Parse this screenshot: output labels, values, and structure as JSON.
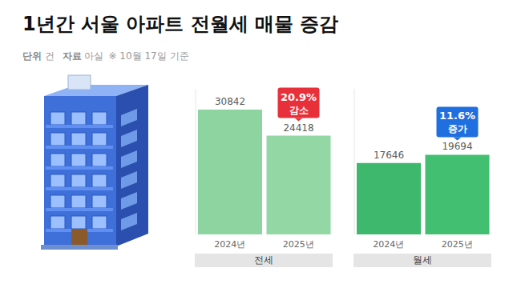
{
  "chart_data": {
    "type": "bar",
    "title": "1년간 서울 아파트 전월세 매물 증감",
    "subtitle": {
      "unit_label": "단위",
      "unit": "건",
      "source_label": "자료",
      "source": "아실",
      "note": "※ 10월 17일 기준"
    },
    "ylim": [
      0,
      36000
    ],
    "tick_labels": false,
    "data_labels": true,
    "groups": [
      {
        "name": "전세",
        "categories": [
          "2024년",
          "2025년"
        ],
        "values": [
          30842,
          24418
        ],
        "colors": [
          "#8dd4a0",
          "#93d7a5"
        ],
        "annotation": {
          "text": [
            "20.9%",
            "감소"
          ],
          "color": "#e8303a"
        }
      },
      {
        "name": "월세",
        "categories": [
          "2024년",
          "2025년"
        ],
        "values": [
          17646,
          19694
        ],
        "colors": [
          "#3db86c",
          "#43bf72"
        ],
        "annotation": {
          "text": [
            "11.6%",
            "증가"
          ],
          "color": "#1f6fe0"
        }
      }
    ]
  }
}
